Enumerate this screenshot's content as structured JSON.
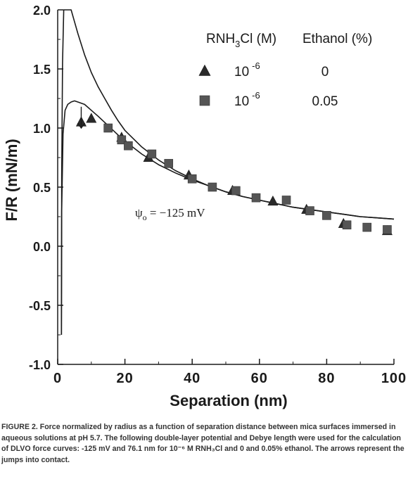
{
  "chart_data": {
    "type": "scatter",
    "title": "",
    "xlabel": "Separation (nm)",
    "ylabel": "F/R (mN/m)",
    "xlim": [
      0,
      100
    ],
    "ylim": [
      -1.0,
      2.0
    ],
    "x_ticks": [
      "0",
      "20",
      "40",
      "60",
      "80",
      "100"
    ],
    "y_ticks": [
      "2.0",
      "1.5",
      "1.0",
      "0.5",
      "0.0",
      "-0.5",
      "-1.0"
    ],
    "grid": false,
    "legend": {
      "placement": "top-right",
      "header_col1": "RNH",
      "header_sub": "3",
      "header_col1_rest": "Cl (M)",
      "header_col2": "Ethanol (%)",
      "conc_base": "10",
      "conc_exp": "-6",
      "entries": [
        {
          "marker": "triangle",
          "ethanol": "0"
        },
        {
          "marker": "square",
          "ethanol": "0.05"
        }
      ]
    },
    "series": [
      {
        "marker": "triangle",
        "points": [
          [
            7,
            1.05
          ],
          [
            10,
            1.08
          ],
          [
            19,
            0.92
          ],
          [
            27,
            0.75
          ],
          [
            39,
            0.6
          ],
          [
            52,
            0.47
          ],
          [
            64,
            0.38
          ],
          [
            74,
            0.31
          ],
          [
            85,
            0.19
          ],
          [
            98,
            0.13
          ]
        ]
      },
      {
        "marker": "square",
        "points": [
          [
            15,
            1.0
          ],
          [
            19,
            0.9
          ],
          [
            21,
            0.85
          ],
          [
            28,
            0.78
          ],
          [
            33,
            0.7
          ],
          [
            40,
            0.57
          ],
          [
            46,
            0.5
          ],
          [
            53,
            0.47
          ],
          [
            59,
            0.41
          ],
          [
            68,
            0.39
          ],
          [
            75,
            0.3
          ],
          [
            80,
            0.26
          ],
          [
            86,
            0.18
          ],
          [
            92,
            0.16
          ],
          [
            98,
            0.14
          ]
        ]
      }
    ],
    "curves": {
      "dlvo_upper": [
        [
          1.1,
          -0.75
        ],
        [
          1.2,
          0.6
        ],
        [
          1.45,
          1.55
        ],
        [
          1.8,
          2.0
        ],
        [
          4.0,
          2.0
        ],
        [
          5,
          1.9
        ],
        [
          6,
          1.8
        ],
        [
          8,
          1.62
        ],
        [
          10,
          1.47
        ],
        [
          12,
          1.35
        ],
        [
          14,
          1.25
        ],
        [
          16,
          1.15
        ],
        [
          18,
          1.06
        ],
        [
          20,
          0.98
        ],
        [
          25,
          0.84
        ],
        [
          30,
          0.73
        ],
        [
          35,
          0.64
        ],
        [
          40,
          0.57
        ],
        [
          45,
          0.51
        ],
        [
          50,
          0.46
        ],
        [
          55,
          0.42
        ],
        [
          60,
          0.39
        ],
        [
          65,
          0.36
        ],
        [
          70,
          0.33
        ],
        [
          75,
          0.31
        ],
        [
          80,
          0.29
        ],
        [
          85,
          0.27
        ],
        [
          90,
          0.25
        ],
        [
          95,
          0.24
        ],
        [
          100,
          0.23
        ]
      ],
      "dlvo_lower": [
        [
          1.1,
          -0.75
        ],
        [
          1.2,
          0.3
        ],
        [
          1.6,
          0.95
        ],
        [
          2.2,
          1.15
        ],
        [
          3,
          1.2
        ],
        [
          4,
          1.22
        ],
        [
          5,
          1.23
        ],
        [
          6,
          1.22
        ],
        [
          8,
          1.2
        ],
        [
          10,
          1.15
        ],
        [
          12,
          1.1
        ],
        [
          15,
          1.02
        ],
        [
          18,
          0.94
        ],
        [
          20,
          0.89
        ],
        [
          25,
          0.78
        ],
        [
          30,
          0.69
        ],
        [
          35,
          0.62
        ],
        [
          40,
          0.56
        ],
        [
          45,
          0.51
        ],
        [
          50,
          0.46
        ],
        [
          55,
          0.42
        ],
        [
          60,
          0.39
        ],
        [
          65,
          0.36
        ],
        [
          70,
          0.33
        ],
        [
          75,
          0.31
        ],
        [
          80,
          0.29
        ],
        [
          85,
          0.27
        ],
        [
          90,
          0.25
        ],
        [
          95,
          0.24
        ],
        [
          100,
          0.23
        ]
      ]
    },
    "jump_arrow": {
      "x": 7,
      "y_from": 1.18,
      "y_to": 1.0
    },
    "annotation": {
      "psi": "ψ",
      "sub": "o",
      "text": " = −125 mV",
      "x": 23,
      "y": 0.25
    }
  },
  "caption": "FIGURE 2.  Force normalized by radius as a function of separation distance between mica surfaces immersed in aqueous solutions at pH 5.7.  The following double-layer potential and Debye length were used for the calculation of DLVO force curves: -125 mV and 76.1 nm for 10⁻⁶ M RNH₃Cl and 0 and 0.05% ethanol. The arrows represent the jumps into contact."
}
